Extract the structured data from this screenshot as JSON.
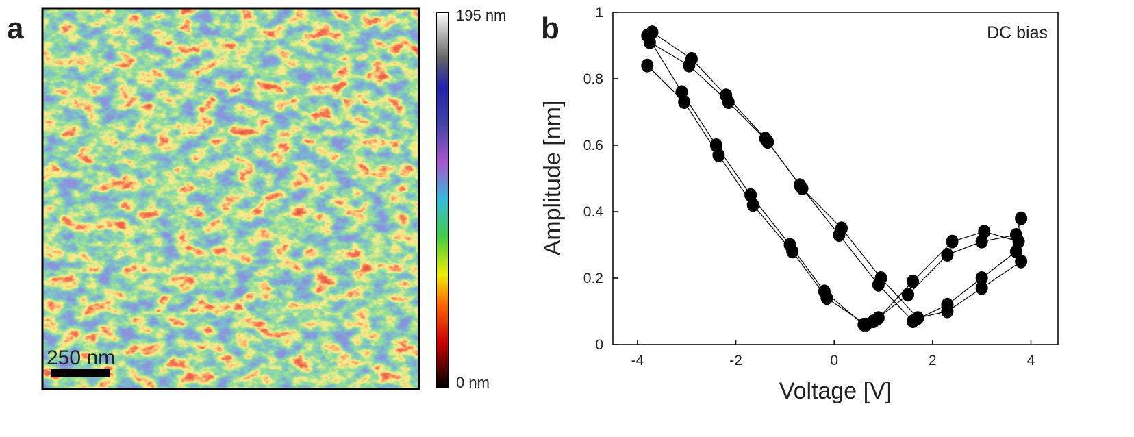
{
  "panel_a": {
    "label": "a",
    "scale_bar": "250 nm",
    "colorbar_max": "195 nm",
    "colorbar_min": "0 nm"
  },
  "chart_data": {
    "type": "scatter-line",
    "panel_label": "b",
    "annotation": "DC bias",
    "x_label": "Voltage [V]",
    "y_label": "Amplitude [nm]",
    "color": "#000000",
    "xlim": [
      -4.5,
      4.55
    ],
    "ylim": [
      0,
      1
    ],
    "xticks": [
      -4,
      -2,
      0,
      2,
      4
    ],
    "yticks": [
      0,
      0.2,
      0.4,
      0.6,
      0.8,
      1
    ],
    "series": [
      {
        "x": [
          -3.8,
          -3.1,
          -2.4,
          -1.7,
          -0.9,
          -0.2,
          0.6,
          0.8,
          1.5,
          2.3,
          3.0,
          3.7,
          3.8,
          3.7,
          3.0,
          2.3,
          1.6,
          0.9,
          0.1,
          -0.7,
          -1.4,
          -2.2,
          -2.9,
          -3.7
        ],
        "values": [
          0.93,
          0.76,
          0.6,
          0.45,
          0.3,
          0.16,
          0.06,
          0.07,
          0.15,
          0.27,
          0.31,
          0.33,
          0.38,
          0.28,
          0.2,
          0.12,
          0.07,
          0.18,
          0.33,
          0.48,
          0.62,
          0.75,
          0.86,
          0.94
        ]
      },
      {
        "x": [
          -3.8,
          -3.05,
          -2.35,
          -1.65,
          -0.85,
          -0.15,
          0.65,
          0.9,
          1.6,
          2.4,
          3.05,
          3.75,
          3.8,
          3.0,
          2.3,
          1.7,
          0.95,
          0.15,
          -0.65,
          -1.35,
          -2.15,
          -2.95,
          -3.75
        ],
        "values": [
          0.84,
          0.73,
          0.57,
          0.42,
          0.28,
          0.14,
          0.06,
          0.08,
          0.19,
          0.31,
          0.34,
          0.31,
          0.25,
          0.17,
          0.1,
          0.08,
          0.2,
          0.35,
          0.47,
          0.61,
          0.73,
          0.84,
          0.91
        ]
      }
    ]
  }
}
